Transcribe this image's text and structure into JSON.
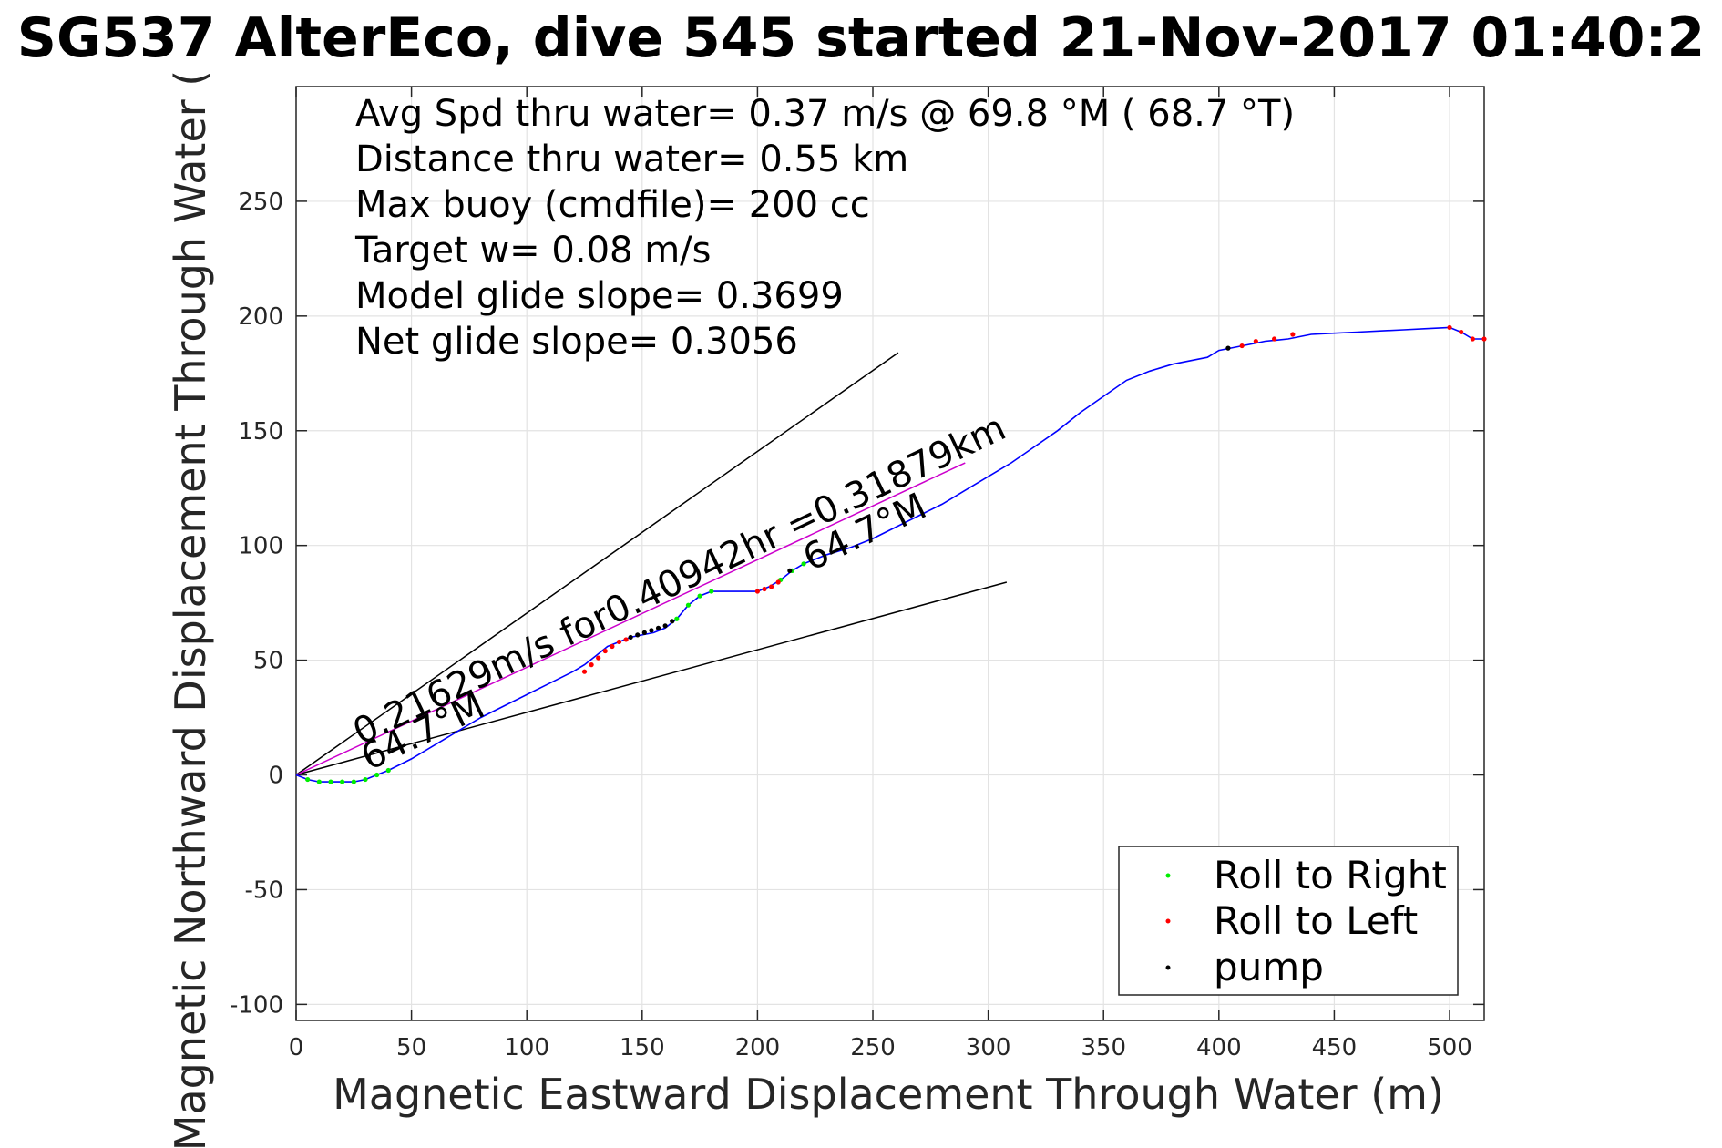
{
  "chart_data": {
    "type": "line",
    "title": "SG537 AlterEco, dive 545 started 21-Nov-2017 01:40:2",
    "xlabel": "Magnetic Eastward Displacement Through Water (m)",
    "ylabel": "Magnetic Northward Displacement Through Water (",
    "xlim": [
      0,
      515
    ],
    "ylim": [
      -107,
      300
    ],
    "xticks": [
      0,
      50,
      100,
      150,
      200,
      250,
      300,
      350,
      400,
      450,
      500
    ],
    "yticks": [
      -100,
      -50,
      0,
      50,
      100,
      150,
      200,
      250
    ],
    "grid": true,
    "legend_position": "bottom-right",
    "info_lines": [
      "Avg Spd thru water=  0.37 m/s @  69.8 °M ( 68.7 °T)",
      "Distance thru water=  0.55 km",
      "Max buoy (cmdfile)= 200 cc",
      "Target w= 0.08 m/s",
      "Model glide slope= 0.3699",
      "Net glide slope= 0.3056"
    ],
    "segment_annotations": [
      "0.21629m/s for0.40942hr =0.31879km",
      "64.7°M",
      "64.7°M"
    ],
    "colors": {
      "track": "#0000ff",
      "magenta_line": "#cc00cc",
      "reference_lines": "#000000",
      "roll_right": "#00ee00",
      "roll_left": "#ff0000",
      "pump": "#000000",
      "grid": "#e3e3e3"
    },
    "series": [
      {
        "name": "track",
        "x": [
          0,
          5,
          10,
          15,
          20,
          25,
          30,
          35,
          40,
          50,
          60,
          70,
          80,
          90,
          100,
          110,
          120,
          125,
          130,
          135,
          140,
          145,
          150,
          155,
          160,
          165,
          170,
          175,
          180,
          185,
          190,
          195,
          200,
          205,
          210,
          215,
          220,
          225,
          230,
          240,
          250,
          260,
          270,
          280,
          290,
          300,
          310,
          320,
          330,
          340,
          350,
          360,
          370,
          380,
          390,
          395,
          400,
          405,
          410,
          415,
          420,
          425,
          430,
          435,
          440,
          450,
          460,
          470,
          480,
          490,
          500,
          505,
          510,
          515
        ],
        "y": [
          0,
          -2,
          -3,
          -3,
          -3,
          -3,
          -2,
          0,
          2,
          7,
          13,
          19,
          25,
          30,
          35,
          40,
          45,
          48,
          52,
          56,
          58,
          60,
          61,
          62,
          64,
          68,
          74,
          78,
          80,
          80,
          80,
          80,
          80,
          82,
          85,
          89,
          92,
          94,
          96,
          99,
          103,
          108,
          113,
          118,
          124,
          130,
          136,
          143,
          150,
          158,
          165,
          172,
          176,
          179,
          181,
          182,
          185,
          186,
          187,
          188,
          189,
          189.5,
          190,
          191,
          192,
          192.5,
          193,
          193.5,
          194,
          194.5,
          195,
          193,
          190,
          190
        ]
      },
      {
        "name": "Roll to Right",
        "x": [
          5,
          10,
          15,
          20,
          25,
          30,
          35,
          40,
          165,
          170,
          175,
          180,
          210,
          215,
          220
        ],
        "y": [
          -2,
          -3,
          -3,
          -3,
          -3,
          -2,
          0,
          2,
          68,
          74,
          78,
          80,
          85,
          89,
          92
        ]
      },
      {
        "name": "Roll to Left",
        "x": [
          125,
          128,
          131,
          134,
          137,
          140,
          143,
          200,
          203,
          206,
          209,
          410,
          416,
          424,
          432,
          500,
          505,
          510,
          515
        ],
        "y": [
          45,
          48,
          51,
          54,
          56,
          58,
          59,
          80,
          81,
          82,
          84,
          187,
          189,
          190,
          192,
          195,
          193,
          190,
          190
        ]
      },
      {
        "name": "pump",
        "x": [
          145,
          148,
          151,
          154,
          157,
          160,
          163,
          214,
          404
        ],
        "y": [
          60,
          61,
          62,
          63,
          64,
          65,
          67,
          89,
          186
        ]
      }
    ],
    "reference_lines": [
      {
        "x": [
          0,
          261
        ],
        "y": [
          0,
          184
        ]
      },
      {
        "x": [
          0,
          308
        ],
        "y": [
          0,
          84
        ]
      },
      {
        "x": [
          0,
          290
        ],
        "y": [
          0,
          136
        ]
      }
    ],
    "legend": [
      "Roll to Right",
      "Roll to Left",
      "pump"
    ]
  }
}
